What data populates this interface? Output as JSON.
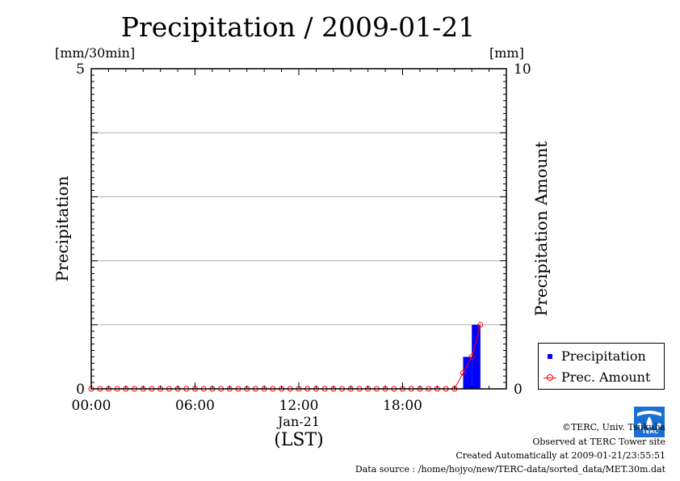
{
  "chart_data": {
    "type": "bar",
    "title": "Precipitation / 2009-01-21",
    "left_axis": {
      "label": "Precipitation",
      "unit": "[mm/30min]",
      "ylim": [
        0,
        5
      ],
      "ticks": [
        "0",
        "5"
      ]
    },
    "right_axis": {
      "label": "Precipitation Amount",
      "unit": "[mm]",
      "ylim": [
        0,
        10
      ],
      "ticks": [
        "0",
        "10"
      ]
    },
    "x_ticks": [
      "00:00",
      "06:00",
      "12:00",
      "18:00"
    ],
    "x_date": "Jan-21",
    "x_timezone": "(LST)",
    "xlim_hours": [
      0,
      24
    ],
    "grid": true,
    "legend_position": "bottom-right",
    "series": [
      {
        "name": "Precipitation",
        "kind": "bar",
        "axis": "left",
        "color": "#0000ff",
        "x": [
          21.5,
          22.0
        ],
        "values": [
          0.5,
          1.0
        ]
      },
      {
        "name": "Prec. Amount",
        "kind": "line",
        "axis": "right",
        "color": "#ff0000",
        "x": [
          0,
          0.5,
          1,
          1.5,
          2,
          2.5,
          3,
          3.5,
          4,
          4.5,
          5,
          5.5,
          6,
          6.5,
          7,
          7.5,
          8,
          8.5,
          9,
          9.5,
          10,
          10.5,
          11,
          11.5,
          12,
          12.5,
          13,
          13.5,
          14,
          14.5,
          15,
          15.5,
          16,
          16.5,
          17,
          17.5,
          18,
          18.5,
          19,
          19.5,
          20,
          20.5,
          21,
          21.5,
          22,
          22.5
        ],
        "values": [
          0,
          0,
          0,
          0,
          0,
          0,
          0,
          0,
          0,
          0,
          0,
          0,
          0,
          0,
          0,
          0,
          0,
          0,
          0,
          0,
          0,
          0,
          0,
          0,
          0,
          0,
          0,
          0,
          0,
          0,
          0,
          0,
          0,
          0,
          0,
          0,
          0,
          0,
          0,
          0,
          0,
          0,
          0,
          0.5,
          1.0,
          2.0
        ]
      }
    ]
  },
  "legend": {
    "precipitation": "Precipitation",
    "amount": "Prec. Amount"
  },
  "footer": {
    "copyright": "©TERC, Univ. Tsukuba",
    "observed": "Observed at TERC Tower site",
    "created": "Created Automatically at 2009-01-21/23:55:51",
    "datasource": "Data source : /home/hojyo/new/TERC-data/sorted_data/MET.30m.dat"
  },
  "logo_text": "TERC"
}
